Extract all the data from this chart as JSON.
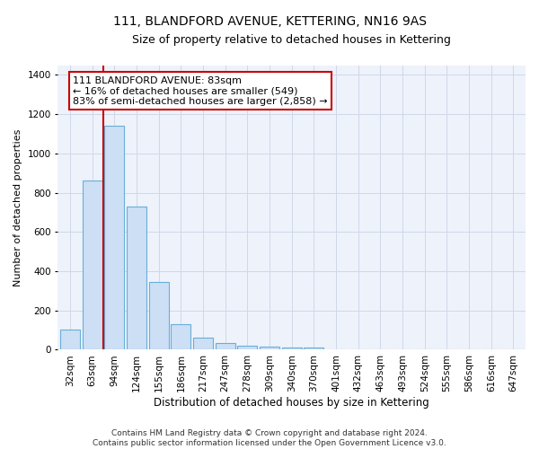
{
  "title": "111, BLANDFORD AVENUE, KETTERING, NN16 9AS",
  "subtitle": "Size of property relative to detached houses in Kettering",
  "xlabel": "Distribution of detached houses by size in Kettering",
  "ylabel": "Number of detached properties",
  "categories": [
    "32sqm",
    "63sqm",
    "94sqm",
    "124sqm",
    "155sqm",
    "186sqm",
    "217sqm",
    "247sqm",
    "278sqm",
    "309sqm",
    "340sqm",
    "370sqm",
    "401sqm",
    "432sqm",
    "463sqm",
    "493sqm",
    "524sqm",
    "555sqm",
    "586sqm",
    "616sqm",
    "647sqm"
  ],
  "values": [
    103,
    860,
    1140,
    730,
    345,
    130,
    60,
    32,
    22,
    18,
    10,
    10,
    0,
    0,
    0,
    0,
    0,
    0,
    0,
    0,
    0
  ],
  "bar_color": "#ccdff5",
  "bar_edge_color": "#6aaed6",
  "background_color": "#eef2fb",
  "grid_color": "#d0d8e8",
  "annotation_text": "111 BLANDFORD AVENUE: 83sqm\n← 16% of detached houses are smaller (549)\n83% of semi-detached houses are larger (2,858) →",
  "annotation_box_color": "#ffffff",
  "annotation_box_edge": "#cc0000",
  "vline_color": "#cc0000",
  "vline_x": 1.5,
  "ylim": [
    0,
    1450
  ],
  "yticks": [
    0,
    200,
    400,
    600,
    800,
    1000,
    1200,
    1400
  ],
  "footnote": "Contains HM Land Registry data © Crown copyright and database right 2024.\nContains public sector information licensed under the Open Government Licence v3.0.",
  "title_fontsize": 10,
  "subtitle_fontsize": 9,
  "xlabel_fontsize": 8.5,
  "ylabel_fontsize": 8,
  "tick_fontsize": 7.5,
  "annotation_fontsize": 8,
  "footnote_fontsize": 6.5
}
